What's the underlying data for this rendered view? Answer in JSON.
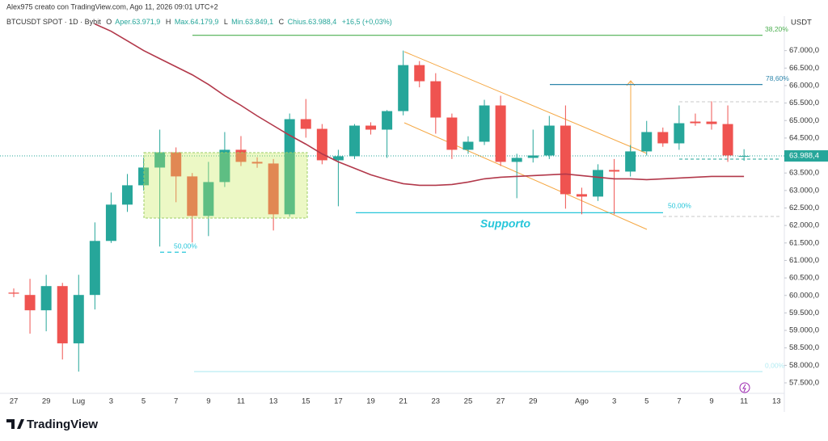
{
  "header": {
    "attribution": "Alex975 creato con TradingView.com, Ago 11, 2026 09:01 UTC+2",
    "symbol": "BTCUSDT SPOT · 1D · Bybit",
    "o": "O",
    "open": "Aper.63.971,9",
    "h": "H",
    "high": "Max.64.179,9",
    "l": "L",
    "low": "Min.63.849,1",
    "c": "C",
    "close": "Chius.63.988,4",
    "change": "+16,5 (+0,03%)",
    "currency": "USDT",
    "brand": "TradingView"
  },
  "chart_data": {
    "type": "candlestick",
    "categories": [
      "27",
      null,
      "29",
      null,
      "Lug",
      null,
      "3",
      null,
      "5",
      null,
      "7",
      null,
      "9",
      null,
      "11",
      null,
      "13",
      null,
      "15",
      null,
      "17",
      null,
      "19",
      null,
      "21",
      null,
      "23",
      null,
      "25",
      null,
      "27",
      null,
      "29",
      null,
      null,
      "Ago",
      null,
      "3",
      null,
      "5",
      null,
      "7",
      null,
      "9",
      null,
      "11",
      null,
      "13"
    ],
    "open": [
      60080,
      60013,
      59575,
      60267,
      58629,
      60013,
      61558,
      62596,
      63149,
      63656,
      64094,
      63403,
      62273,
      63241,
      64164,
      63818,
      63772,
      62319,
      65040,
      64763,
      63864,
      63979,
      64855,
      64740,
      65270,
      66585,
      66124,
      65086,
      64164,
      64394,
      65432,
      63818,
      63933,
      64002,
      64855,
      62895,
      62826,
      63587,
      63541,
      64118,
      64671,
      64348,
      64970,
      64970,
      64900,
      63971.9,
      null,
      null
    ],
    "high": [
      60200,
      60474,
      60589,
      60359,
      60590,
      62088,
      62941,
      63472,
      63933,
      64740,
      64232,
      63500,
      63818,
      64671,
      64556,
      63950,
      63900,
      65201,
      65616,
      64900,
      64164,
      64900,
      64950,
      65300,
      67000,
      66700,
      66354,
      65200,
      64550,
      65593,
      65709,
      64050,
      64740,
      65132,
      65432,
      63080,
      63750,
      63900,
      64300,
      64990,
      64800,
      65432,
      65200,
      65550,
      65432,
      64179.9,
      null,
      null
    ],
    "low": [
      59950,
      58906,
      58975,
      58168,
      57822,
      59598,
      61500,
      62388,
      63000,
      61396,
      62665,
      61512,
      61696,
      63100,
      63700,
      63650,
      61857,
      62250,
      64510,
      63750,
      62549,
      63900,
      64600,
      63933,
      65150,
      65950,
      64625,
      63900,
      64050,
      64300,
      63700,
      62780,
      63800,
      63900,
      62480,
      62319,
      62700,
      62319,
      63400,
      64000,
      64250,
      64164,
      64850,
      64740,
      63818,
      63849.1,
      null,
      null
    ],
    "close": [
      60050,
      59575,
      60267,
      58629,
      60013,
      61558,
      62596,
      63149,
      63656,
      64094,
      63403,
      62273,
      63241,
      64164,
      63818,
      63772,
      62319,
      65040,
      64763,
      63864,
      63979,
      64855,
      64740,
      65270,
      66585,
      66124,
      65086,
      64164,
      64394,
      65432,
      63818,
      63933,
      64002,
      64855,
      62895,
      62826,
      63587,
      63541,
      64118,
      64671,
      64348,
      64924,
      64924,
      64900,
      64002,
      63988.4,
      null,
      null
    ],
    "up_color": "#26a69a",
    "down_color": "#ef5350",
    "ma": {
      "color": "#b2384a",
      "values": [
        null,
        null,
        null,
        null,
        null,
        67761,
        67553,
        67277,
        67000,
        66770,
        66539,
        66308,
        66031,
        65709,
        65432,
        65132,
        64855,
        64579,
        64325,
        64048,
        63818,
        63633,
        63449,
        63310,
        63195,
        63149,
        63149,
        63172,
        63241,
        63333,
        63380,
        63403,
        63426,
        63449,
        63472,
        63426,
        63380,
        63333,
        63333,
        63310,
        63333,
        63357,
        63380,
        63403,
        63403,
        63403,
        null,
        null
      ]
    },
    "ylim": [
      57200,
      67800
    ],
    "yticks": [
      {
        "value": 57500,
        "label": "57.500,0"
      },
      {
        "value": 58000,
        "label": "58.000,0"
      },
      {
        "value": 58500,
        "label": "58.500,0"
      },
      {
        "value": 59000,
        "label": "59.000,0"
      },
      {
        "value": 59500,
        "label": "59.500,0"
      },
      {
        "value": 60000,
        "label": "60.000,0"
      },
      {
        "value": 60500,
        "label": "60.500,0"
      },
      {
        "value": 61000,
        "label": "61.000,0"
      },
      {
        "value": 61500,
        "label": "61.500,0"
      },
      {
        "value": 62000,
        "label": "62.000,0"
      },
      {
        "value": 62500,
        "label": "62.500,0"
      },
      {
        "value": 63000,
        "label": "63.000,0"
      },
      {
        "value": 63500,
        "label": "63.500,0"
      },
      {
        "value": 64000,
        "label": "64.000,0"
      },
      {
        "value": 64500,
        "label": "64.500,0"
      },
      {
        "value": 65000,
        "label": "65.000,0"
      },
      {
        "value": 65500,
        "label": "65.500,0"
      },
      {
        "value": 66000,
        "label": "66.000,0"
      },
      {
        "value": 66500,
        "label": "66.500,0"
      },
      {
        "value": 67000,
        "label": "67.000,0"
      }
    ],
    "grid": false,
    "last_price": {
      "value": 63988.4,
      "label": "63.988,4",
      "color": "#26a69a"
    },
    "levels": [
      {
        "label": "38,20%",
        "value": 67438,
        "color": "#4caf50"
      },
      {
        "label": "78,60%",
        "value": 66031,
        "color": "#2e86ab"
      },
      {
        "label": "50,00%",
        "value": 62365,
        "color": "#26c6da"
      },
      {
        "label": "0,00%",
        "value": 57822,
        "color": "#b2ebf2"
      },
      {
        "label": "50,00%",
        "value": 61235,
        "color": "#26c6da"
      }
    ],
    "annotation": "Supporto"
  }
}
